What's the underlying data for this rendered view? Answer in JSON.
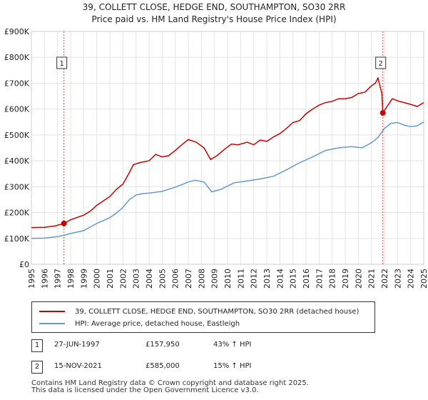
{
  "chart_data": {
    "type": "line",
    "title": "39, COLLETT CLOSE, HEDGE END, SOUTHAMPTON, SO30 2RR",
    "subtitle": "Price paid vs. HM Land Registry's House Price Index (HPI)",
    "xlim": [
      1995,
      2025
    ],
    "ylim": [
      0,
      900000
    ],
    "yticks": [
      {
        "v": 0,
        "label": "£0"
      },
      {
        "v": 100000,
        "label": "£100K"
      },
      {
        "v": 200000,
        "label": "£200K"
      },
      {
        "v": 300000,
        "label": "£300K"
      },
      {
        "v": 400000,
        "label": "£400K"
      },
      {
        "v": 500000,
        "label": "£500K"
      },
      {
        "v": 600000,
        "label": "£600K"
      },
      {
        "v": 700000,
        "label": "£700K"
      },
      {
        "v": 800000,
        "label": "£800K"
      },
      {
        "v": 900000,
        "label": "£900K"
      }
    ],
    "xticks": [
      "1995",
      "1996",
      "1997",
      "1998",
      "1999",
      "2000",
      "2001",
      "2002",
      "2003",
      "2004",
      "2005",
      "2006",
      "2007",
      "2008",
      "2009",
      "2010",
      "2011",
      "2012",
      "2013",
      "2014",
      "2015",
      "2016",
      "2017",
      "2018",
      "2019",
      "2020",
      "2021",
      "2022",
      "2023",
      "2024",
      "2025"
    ],
    "series": [
      {
        "name": "39, COLLETT CLOSE, HEDGE END, SOUTHAMPTON, SO30 2RR (detached house)",
        "color": "#cc0000",
        "points": [
          [
            1995.0,
            142000
          ],
          [
            1996.0,
            143000
          ],
          [
            1996.8,
            148000
          ],
          [
            1997.49,
            157950
          ],
          [
            1998.0,
            172000
          ],
          [
            1999.0,
            190000
          ],
          [
            1999.5,
            205000
          ],
          [
            2000.0,
            228000
          ],
          [
            2000.5,
            245000
          ],
          [
            2001.0,
            262000
          ],
          [
            2001.5,
            290000
          ],
          [
            2002.0,
            310000
          ],
          [
            2002.5,
            355000
          ],
          [
            2002.8,
            385000
          ],
          [
            2003.3,
            393000
          ],
          [
            2004.0,
            400000
          ],
          [
            2004.5,
            425000
          ],
          [
            2005.0,
            415000
          ],
          [
            2005.5,
            420000
          ],
          [
            2006.0,
            440000
          ],
          [
            2006.5,
            462000
          ],
          [
            2007.0,
            482000
          ],
          [
            2007.6,
            472000
          ],
          [
            2008.2,
            450000
          ],
          [
            2008.7,
            405000
          ],
          [
            2009.2,
            420000
          ],
          [
            2009.7,
            442000
          ],
          [
            2010.3,
            465000
          ],
          [
            2010.8,
            462000
          ],
          [
            2011.5,
            472000
          ],
          [
            2012.0,
            462000
          ],
          [
            2012.5,
            480000
          ],
          [
            2013.0,
            475000
          ],
          [
            2013.5,
            492000
          ],
          [
            2014.0,
            505000
          ],
          [
            2014.5,
            525000
          ],
          [
            2015.0,
            548000
          ],
          [
            2015.5,
            555000
          ],
          [
            2016.0,
            582000
          ],
          [
            2016.5,
            600000
          ],
          [
            2017.0,
            615000
          ],
          [
            2017.5,
            625000
          ],
          [
            2018.0,
            630000
          ],
          [
            2018.5,
            640000
          ],
          [
            2019.0,
            640000
          ],
          [
            2019.5,
            645000
          ],
          [
            2020.0,
            660000
          ],
          [
            2020.5,
            665000
          ],
          [
            2021.0,
            690000
          ],
          [
            2021.3,
            700000
          ],
          [
            2021.5,
            720000
          ],
          [
            2021.8,
            660000
          ],
          [
            2021.874,
            585000
          ],
          [
            2022.2,
            610000
          ],
          [
            2022.6,
            640000
          ],
          [
            2023.0,
            632000
          ],
          [
            2023.5,
            625000
          ],
          [
            2024.0,
            618000
          ],
          [
            2024.5,
            610000
          ],
          [
            2025.0,
            625000
          ]
        ]
      },
      {
        "name": "HPI: Average price, detached house, Eastleigh",
        "color": "#6699cc",
        "points": [
          [
            1995.0,
            100000
          ],
          [
            1996.0,
            101000
          ],
          [
            1997.0,
            107000
          ],
          [
            1997.5,
            112000
          ],
          [
            1998.0,
            119000
          ],
          [
            1999.0,
            130000
          ],
          [
            2000.0,
            158000
          ],
          [
            2001.0,
            180000
          ],
          [
            2001.5,
            198000
          ],
          [
            2002.0,
            220000
          ],
          [
            2002.5,
            250000
          ],
          [
            2003.0,
            268000
          ],
          [
            2003.5,
            273000
          ],
          [
            2004.0,
            275000
          ],
          [
            2005.0,
            282000
          ],
          [
            2006.0,
            298000
          ],
          [
            2007.0,
            318000
          ],
          [
            2007.5,
            325000
          ],
          [
            2008.2,
            318000
          ],
          [
            2008.8,
            280000
          ],
          [
            2009.5,
            290000
          ],
          [
            2010.5,
            315000
          ],
          [
            2011.5,
            322000
          ],
          [
            2012.5,
            330000
          ],
          [
            2013.5,
            340000
          ],
          [
            2014.5,
            365000
          ],
          [
            2015.5,
            392000
          ],
          [
            2016.5,
            415000
          ],
          [
            2017.5,
            440000
          ],
          [
            2018.5,
            450000
          ],
          [
            2019.5,
            455000
          ],
          [
            2020.3,
            450000
          ],
          [
            2021.0,
            470000
          ],
          [
            2021.5,
            490000
          ],
          [
            2022.0,
            525000
          ],
          [
            2022.5,
            545000
          ],
          [
            2023.0,
            548000
          ],
          [
            2023.5,
            538000
          ],
          [
            2024.0,
            532000
          ],
          [
            2024.5,
            535000
          ],
          [
            2025.0,
            550000
          ]
        ]
      }
    ],
    "markers": [
      {
        "label": "1",
        "x": 1997.49,
        "y": 157950
      },
      {
        "label": "2",
        "x": 2021.874,
        "y": 585000
      }
    ]
  },
  "legend": {
    "property_label": "39, COLLETT CLOSE, HEDGE END, SOUTHAMPTON, SO30 2RR (detached house)",
    "hpi_label": "HPI: Average price, detached house, Eastleigh"
  },
  "sales": [
    {
      "num": "1",
      "date": "27-JUN-1997",
      "price": "£157,950",
      "hpi": "43% ↑ HPI"
    },
    {
      "num": "2",
      "date": "15-NOV-2021",
      "price": "£585,000",
      "hpi": "15% ↑ HPI"
    }
  ],
  "footer": {
    "line1": "Contains HM Land Registry data © Crown copyright and database right 2025.",
    "line2": "This data is licensed under the Open Government Licence v3.0."
  },
  "colors": {
    "property": "#cc0000",
    "hpi": "#6699cc",
    "grid": "#e3e3e3",
    "marker_line": "#dd4444"
  }
}
